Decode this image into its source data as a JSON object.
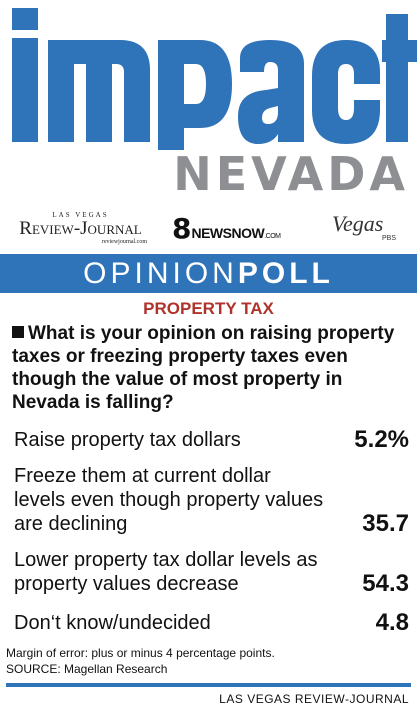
{
  "masthead": {
    "logo_word": "impact",
    "logo_sub": "NEVADA",
    "sponsors": {
      "rj_small": "LAS VEGAS",
      "rj_big": "Review-Journal",
      "rj_url": "reviewjournal.com",
      "news_number": "8",
      "news_name": "NEWSNOW",
      "news_suffix": ".COM",
      "vegas_name": "Vegas",
      "vegas_pbs": "PBS"
    }
  },
  "banner": {
    "part1": "OPINION",
    "part2": "POLL"
  },
  "accent_colors": {
    "blue": "#2f73b9",
    "red": "#b0332b",
    "gray": "#8d8f92"
  },
  "chart_data": {
    "type": "table",
    "title": "PROPERTY TAX",
    "question": "What is your opinion on raising property taxes or freezing property taxes even though the value of most property in Nevada is falling?",
    "rows": [
      {
        "label": "Raise property tax dollars",
        "value": 5.2,
        "display": "5.2%"
      },
      {
        "label": "Freeze them at current dollar levels even though property values are declining",
        "value": 35.7,
        "display": "35.7"
      },
      {
        "label": "Lower property tax dollar levels as property values decrease",
        "value": 54.3,
        "display": "54.3"
      },
      {
        "label": "Don‘t know/undecided",
        "value": 4.8,
        "display": "4.8"
      }
    ],
    "unit": "percent"
  },
  "notes": {
    "margin": "Margin of error: plus or minus 4 percentage points.",
    "source": "SOURCE: Magellan Research"
  },
  "credit": "LAS VEGAS REVIEW-JOURNAL"
}
